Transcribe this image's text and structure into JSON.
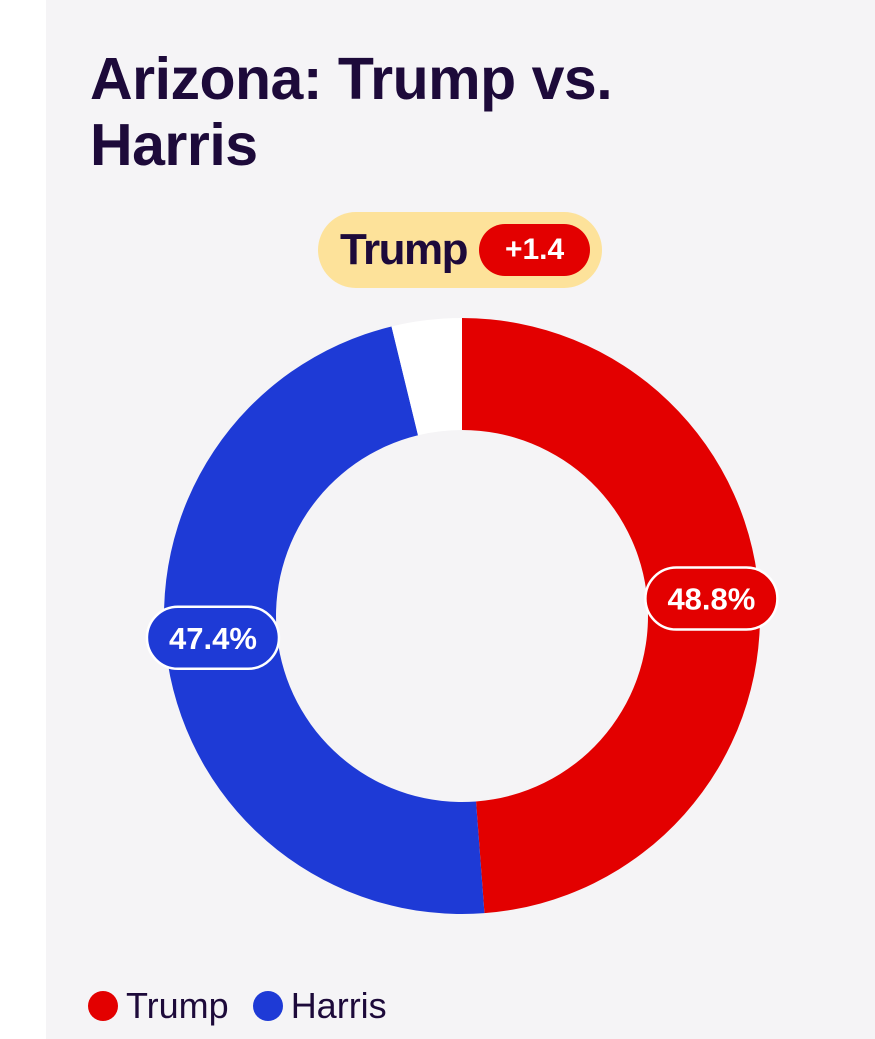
{
  "title": "Arizona: Trump vs. Harris",
  "leader": {
    "name": "Trump",
    "margin": "+1.4"
  },
  "colors": {
    "trump": "#e30000",
    "harris": "#1e3ad6",
    "remainder": "#ffffff",
    "pill_bg": "#fde29a",
    "text": "#1d0a3a"
  },
  "chart_data": {
    "type": "pie",
    "variant": "donut",
    "title": "Arizona: Trump vs. Harris",
    "slices": [
      {
        "name": "Trump",
        "value": 48.8,
        "label": "48.8%",
        "color": "#e30000"
      },
      {
        "name": "Harris",
        "value": 47.4,
        "label": "47.4%",
        "color": "#1e3ad6"
      },
      {
        "name": "",
        "value": 3.8,
        "label": "",
        "color": "#ffffff"
      }
    ],
    "legend": [
      "Trump",
      "Harris"
    ],
    "legend_position": "bottom-left"
  },
  "legend": {
    "items": [
      {
        "label": "Trump",
        "color": "#e30000"
      },
      {
        "label": "Harris",
        "color": "#1e3ad6"
      }
    ]
  }
}
